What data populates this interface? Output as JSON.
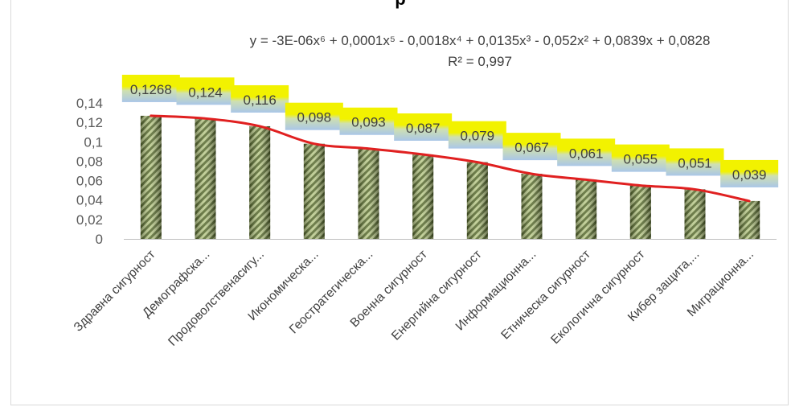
{
  "chart_data": {
    "type": "bar",
    "title": "",
    "title_fragment": "р",
    "categories": [
      "Здравна сигурност",
      "Демографска...",
      "Продоволственасигу...",
      "Икономическа...",
      "Геостратегическа...",
      "Военна сигурност",
      "Енергийна сигурност",
      "Информационна...",
      "Етническа сигурност",
      "Екологична сигурност",
      "Кибер защита,...",
      "Миграционна..."
    ],
    "values": [
      0.1268,
      0.124,
      0.116,
      0.098,
      0.093,
      0.087,
      0.079,
      0.067,
      0.061,
      0.055,
      0.051,
      0.039
    ],
    "value_labels": [
      "0,1268",
      "0,124",
      "0,116",
      "0,098",
      "0,093",
      "0,087",
      "0,079",
      "0,067",
      "0,061",
      "0,055",
      "0,051",
      "0,039"
    ],
    "ylim": [
      0,
      0.14
    ],
    "yticks": [
      0,
      0.02,
      0.04,
      0.06,
      0.08,
      0.1,
      0.12,
      0.14
    ],
    "ytick_labels": [
      "0",
      "0,02",
      "0,04",
      "0,06",
      "0,08",
      "0,1",
      "0,12",
      "0,14"
    ],
    "trendline": {
      "type": "polynomial",
      "order": 6,
      "equation": "y = -3E-06x⁶ + 0,0001x⁵ - 0,0018x⁴ + 0,0135x³ - 0,052x² + 0,0839x + 0,0828",
      "r_squared": "R² = 0,997",
      "color": "#e02020"
    },
    "grid": false,
    "legend": "none",
    "colors": {
      "bar_dark": "#3a4a20",
      "bar_light": "#c8d6a0",
      "label_top": "#f2f200",
      "label_bottom": "#a9c6e8",
      "trend": "#e02020"
    }
  }
}
